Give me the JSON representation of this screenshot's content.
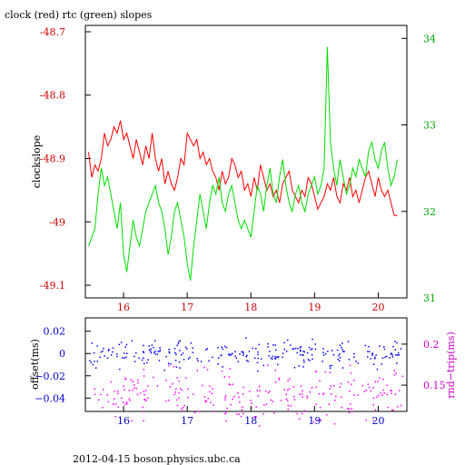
{
  "title": "clock (red) rtc (green) slopes",
  "footer": "2012-04-15  boson.physics.ubc.ca",
  "colors": {
    "frame": "#000000",
    "clock": "#ff0000",
    "rtc": "#00dd00",
    "offset": "#0000ff",
    "rnd_trip": "#ff00ff",
    "tick_red": "#cc0000",
    "tick_green": "#00aa00",
    "tick_blue": "#0000cc",
    "tick_magenta": "#cc00cc"
  },
  "chart_data": [
    {
      "type": "line",
      "title": "clock (red) rtc (green) slopes",
      "ylabel": "clockslope",
      "ylabel_right": "",
      "xlim": [
        15.4,
        20.45
      ],
      "ylim": [
        -49.12,
        -48.69
      ],
      "ylim_right": [
        31.0,
        34.15
      ],
      "x_ticks": [
        16,
        17,
        18,
        19,
        20
      ],
      "y_ticks": [
        -48.7,
        -48.8,
        -48.9,
        -49,
        -49.1
      ],
      "y_tick_labels": [
        "-48.7",
        "-48.8",
        "-48.9",
        "-49",
        "-49.1"
      ],
      "y_right_ticks": [
        34,
        33,
        32,
        31
      ],
      "y_right_tick_labels": [
        "34",
        "33",
        "32",
        "31"
      ],
      "series": [
        {
          "name": "clock",
          "axis": "left",
          "x": [
            15.45,
            15.5,
            15.55,
            15.6,
            15.65,
            15.7,
            15.75,
            15.8,
            15.85,
            15.9,
            15.95,
            16.0,
            16.05,
            16.1,
            16.15,
            16.2,
            16.25,
            16.3,
            16.35,
            16.4,
            16.45,
            16.5,
            16.55,
            16.6,
            16.65,
            16.7,
            16.75,
            16.8,
            16.85,
            16.9,
            16.95,
            17.0,
            17.05,
            17.1,
            17.15,
            17.2,
            17.25,
            17.3,
            17.35,
            17.4,
            17.45,
            17.5,
            17.55,
            17.6,
            17.65,
            17.7,
            17.75,
            17.8,
            17.85,
            17.9,
            17.95,
            18.0,
            18.05,
            18.1,
            18.15,
            18.2,
            18.25,
            18.3,
            18.35,
            18.4,
            18.45,
            18.5,
            18.55,
            18.6,
            18.65,
            18.7,
            18.75,
            18.8,
            18.85,
            18.9,
            18.95,
            19.0,
            19.05,
            19.1,
            19.15,
            19.2,
            19.25,
            19.3,
            19.35,
            19.4,
            19.45,
            19.5,
            19.55,
            19.6,
            19.65,
            19.7,
            19.75,
            19.8,
            19.85,
            19.9,
            19.95,
            20.0,
            20.05,
            20.1,
            20.15,
            20.2,
            20.25,
            20.3
          ],
          "y": [
            -48.89,
            -48.93,
            -48.91,
            -48.92,
            -48.9,
            -48.86,
            -48.88,
            -48.87,
            -48.85,
            -48.86,
            -48.84,
            -48.87,
            -48.86,
            -48.88,
            -48.9,
            -48.87,
            -48.89,
            -48.91,
            -48.88,
            -48.9,
            -48.86,
            -48.9,
            -48.92,
            -48.9,
            -48.94,
            -48.92,
            -48.94,
            -48.95,
            -48.93,
            -48.9,
            -48.91,
            -48.86,
            -48.87,
            -48.88,
            -48.87,
            -48.9,
            -48.89,
            -48.91,
            -48.9,
            -48.92,
            -48.93,
            -48.95,
            -48.92,
            -48.94,
            -48.93,
            -48.9,
            -48.91,
            -48.93,
            -48.92,
            -48.95,
            -48.94,
            -48.96,
            -48.93,
            -48.95,
            -48.91,
            -48.93,
            -48.95,
            -48.94,
            -48.96,
            -48.95,
            -48.97,
            -48.94,
            -48.93,
            -48.92,
            -48.95,
            -48.96,
            -48.97,
            -48.95,
            -48.96,
            -48.93,
            -48.94,
            -48.96,
            -48.98,
            -48.97,
            -48.96,
            -48.94,
            -48.95,
            -48.93,
            -48.96,
            -48.97,
            -48.94,
            -48.95,
            -48.93,
            -48.96,
            -48.95,
            -48.97,
            -48.95,
            -48.93,
            -48.92,
            -48.94,
            -48.96,
            -48.93,
            -48.95,
            -48.96,
            -48.95,
            -48.97,
            -48.99,
            -48.99
          ]
        },
        {
          "name": "rtc",
          "axis": "right",
          "x": [
            15.45,
            15.5,
            15.55,
            15.6,
            15.65,
            15.7,
            15.75,
            15.8,
            15.85,
            15.9,
            15.95,
            16.0,
            16.05,
            16.1,
            16.15,
            16.2,
            16.25,
            16.3,
            16.35,
            16.4,
            16.45,
            16.5,
            16.55,
            16.6,
            16.65,
            16.7,
            16.75,
            16.8,
            16.85,
            16.9,
            16.95,
            17.0,
            17.05,
            17.1,
            17.15,
            17.2,
            17.25,
            17.3,
            17.35,
            17.4,
            17.45,
            17.5,
            17.55,
            17.6,
            17.65,
            17.7,
            17.75,
            17.8,
            17.85,
            17.9,
            17.95,
            18.0,
            18.05,
            18.1,
            18.15,
            18.2,
            18.25,
            18.3,
            18.35,
            18.4,
            18.45,
            18.5,
            18.55,
            18.6,
            18.65,
            18.7,
            18.75,
            18.8,
            18.85,
            18.9,
            18.95,
            19.0,
            19.05,
            19.1,
            19.15,
            19.2,
            19.25,
            19.3,
            19.35,
            19.4,
            19.45,
            19.5,
            19.55,
            19.6,
            19.65,
            19.7,
            19.75,
            19.8,
            19.85,
            19.9,
            19.95,
            20.0,
            20.05,
            20.1,
            20.15,
            20.2,
            20.25,
            20.3
          ],
          "y": [
            31.6,
            31.7,
            31.8,
            32.2,
            32.5,
            32.3,
            32.4,
            32.2,
            32.0,
            31.8,
            32.1,
            31.5,
            31.3,
            31.6,
            31.9,
            31.7,
            31.6,
            31.8,
            32.0,
            32.1,
            32.2,
            32.3,
            32.1,
            32.0,
            31.8,
            31.5,
            31.7,
            32.0,
            32.1,
            31.9,
            31.7,
            31.4,
            31.2,
            31.6,
            31.9,
            32.2,
            32.0,
            31.8,
            32.1,
            32.3,
            32.2,
            32.4,
            32.1,
            32.0,
            32.2,
            32.3,
            32.1,
            31.9,
            31.8,
            31.9,
            31.8,
            31.7,
            32.0,
            32.3,
            32.2,
            32.0,
            32.3,
            32.5,
            32.2,
            32.1,
            32.4,
            32.6,
            32.3,
            32.1,
            32.0,
            32.2,
            32.3,
            32.1,
            32.0,
            32.2,
            32.3,
            32.4,
            32.2,
            32.3,
            32.5,
            33.9,
            32.8,
            32.5,
            32.3,
            32.6,
            32.4,
            32.2,
            32.3,
            32.5,
            32.4,
            32.6,
            32.5,
            32.4,
            32.7,
            32.8,
            32.6,
            32.5,
            32.7,
            32.8,
            32.5,
            32.3,
            32.4,
            32.6
          ]
        }
      ]
    },
    {
      "type": "scatter",
      "ylabel": "offset(ms)",
      "ylabel_right": "rnd−trip(ms)",
      "xlim": [
        15.4,
        20.45
      ],
      "ylim": [
        -0.052,
        0.032
      ],
      "ylim_right": [
        0.118,
        0.232
      ],
      "x_ticks": [
        16,
        17,
        18,
        19,
        20
      ],
      "y_ticks": [
        0.02,
        0,
        -0.02,
        -0.04
      ],
      "y_tick_labels": [
        "0.02",
        "0",
        "−0.02",
        "−0.04"
      ],
      "y_right_ticks": [
        0.2,
        0.15
      ],
      "y_right_tick_labels": [
        "0.2",
        "0.15"
      ],
      "series": [
        {
          "name": "offset",
          "axis": "left",
          "y_center": 0.0,
          "y_spread": 0.006
        },
        {
          "name": "rnd-trip",
          "axis": "right",
          "y_center": 0.14,
          "y_spread": 0.015
        }
      ]
    }
  ]
}
